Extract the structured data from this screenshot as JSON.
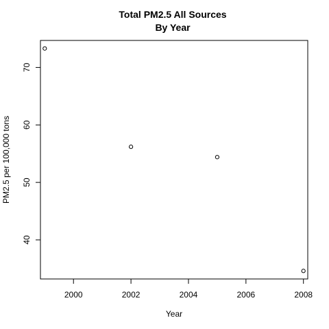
{
  "chart_data": {
    "type": "scatter",
    "title": [
      "Total PM2.5 All Sources",
      "By Year"
    ],
    "xlabel": "Year",
    "ylabel": "PM2.5 per 100,000 tons",
    "x": [
      1999,
      2002,
      2005,
      2008
    ],
    "y": [
      73.3,
      56.2,
      54.4,
      34.6
    ],
    "xlim": [
      1998.85,
      2008.15
    ],
    "ylim": [
      33.2,
      74.7
    ],
    "xticks": [
      2000,
      2002,
      2004,
      2006,
      2008
    ],
    "yticks": [
      40,
      50,
      60,
      70
    ],
    "point_color": "#000000",
    "grid": false,
    "legend": "none"
  }
}
